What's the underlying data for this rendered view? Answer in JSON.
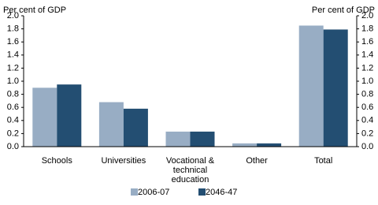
{
  "chart_data": {
    "type": "bar",
    "y_label": "Per cent of GDP",
    "y2_label": "Per cent of GDP",
    "categories": [
      "Schools",
      "Universities",
      "Vocational & technical education",
      "Other",
      "Total"
    ],
    "series": [
      {
        "name": "2006-07",
        "color": "#98adc4",
        "values": [
          0.9,
          0.68,
          0.23,
          0.05,
          1.85
        ]
      },
      {
        "name": "2046-47",
        "color": "#234e72",
        "values": [
          0.95,
          0.58,
          0.23,
          0.05,
          1.79
        ]
      }
    ],
    "ylim": [
      0,
      2
    ],
    "yticks": [
      {
        "value": 0,
        "label": "0.0"
      },
      0.2,
      0.4,
      0.6,
      0.8,
      {
        "value": 1,
        "label": "1.0"
      },
      1.2,
      1.4,
      1.6,
      1.8,
      {
        "value": 2,
        "label": "2.0"
      }
    ],
    "y2lim": [
      0,
      2
    ],
    "y2ticks": [
      {
        "value": 0,
        "label": "0.0"
      },
      0.2,
      0.4,
      0.6,
      0.8,
      {
        "value": 1,
        "label": "1.0"
      },
      1.2,
      1.4,
      1.6,
      1.8,
      {
        "value": 2,
        "label": "2.0"
      }
    ],
    "grid": false,
    "legend": "bottom"
  }
}
